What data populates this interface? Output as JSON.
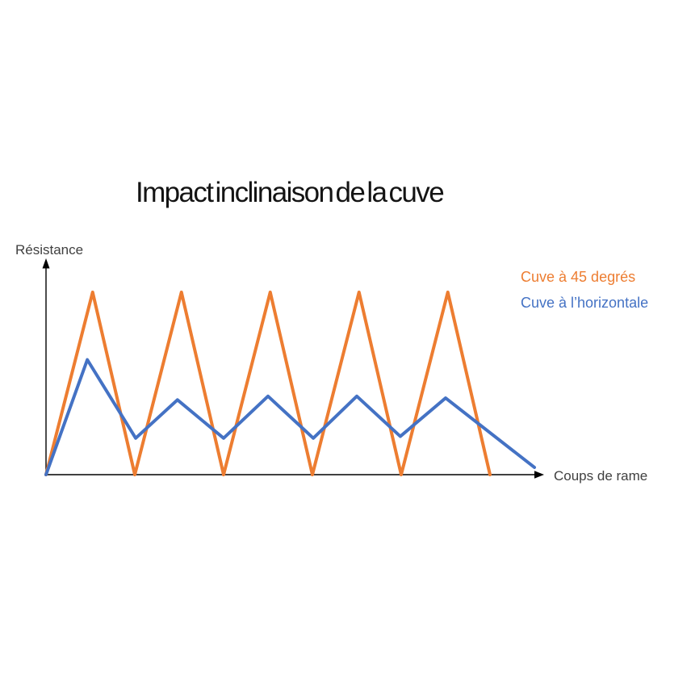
{
  "chart_data": {
    "type": "line",
    "title": "Impact inclinaison de la cuve",
    "xlabel": "Coups de rame",
    "ylabel": "Résistance",
    "grid": false,
    "ticks": false,
    "axis_style": "arrow-axes-no-scale",
    "legend_position": "top-right",
    "x_range": [
      0,
      11.2
    ],
    "y_range": [
      0,
      1.18
    ],
    "series": [
      {
        "name": "Cuve à 45 degrés",
        "color": "#ED7D31",
        "points": [
          [
            0,
            0
          ],
          [
            1.05,
            1.0
          ],
          [
            2,
            0
          ],
          [
            3.05,
            1.0
          ],
          [
            4,
            0
          ],
          [
            5.05,
            1.0
          ],
          [
            6,
            0
          ],
          [
            7.05,
            1.0
          ],
          [
            8,
            0
          ],
          [
            9.05,
            1.0
          ],
          [
            10,
            0
          ]
        ]
      },
      {
        "name": "Cuve à l’horizontale",
        "color": "#4472C4",
        "points": [
          [
            0,
            0
          ],
          [
            0.93,
            0.63
          ],
          [
            2.02,
            0.2
          ],
          [
            2.96,
            0.41
          ],
          [
            4,
            0.2
          ],
          [
            5,
            0.43
          ],
          [
            6.02,
            0.2
          ],
          [
            7,
            0.43
          ],
          [
            7.98,
            0.21
          ],
          [
            9,
            0.42
          ],
          [
            11,
            0.04
          ]
        ]
      }
    ],
    "axis_color": "#000000"
  }
}
